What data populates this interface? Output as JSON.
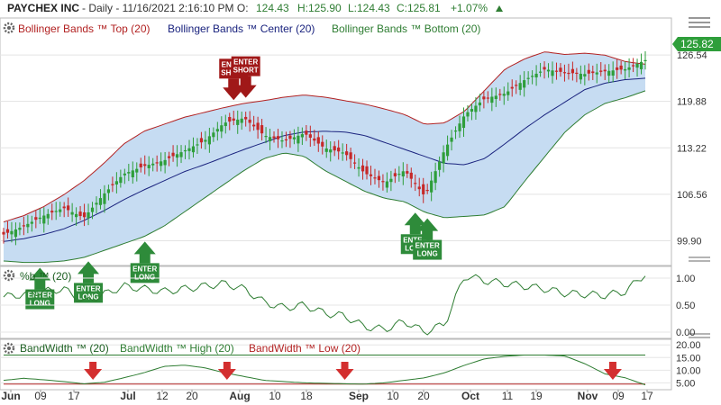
{
  "header": {
    "symbol": "PAYCHEX INC",
    "info": "- Daily - 11/16/2021 2:16:10 PM O:",
    "open": "124.43",
    "high": "H:125.90",
    "low": "L:124.43",
    "close": "C:125.81",
    "change": "+1.07%",
    "change_arrow": "up-triangle-icon"
  },
  "last_price": "125.82",
  "legends": {
    "price": [
      {
        "label": "Bollinger Bands ™ Top (20)",
        "color": "#b22222"
      },
      {
        "label": "Bollinger Bands ™ Center (20)",
        "color": "#1a237e"
      },
      {
        "label": "Bollinger Bands ™ Bottom (20)",
        "color": "#2e7d32"
      }
    ],
    "pctb": [
      {
        "label": "%b ™ (20)",
        "color": "#1b5e20"
      }
    ],
    "bw": [
      {
        "label": "BandWidth ™ (20)",
        "color": "#1b5e20"
      },
      {
        "label": "BandWidth ™ High (20)",
        "color": "#2e7d32"
      },
      {
        "label": "BandWidth ™ Low (20)",
        "color": "#b22222"
      }
    ]
  },
  "colors": {
    "up": "#2e9e3a",
    "down": "#c62828",
    "band_fill": "#c6dcf2",
    "top": "#b22222",
    "center": "#1a237e",
    "bottom": "#2e7d32",
    "buy": "#2e8b3a",
    "sell": "#a01818"
  },
  "chart_data": [
    {
      "type": "candlestick",
      "title": "PAYCHEX INC",
      "x_axis": [
        "Jun",
        "09",
        "17",
        "Jul",
        "12",
        "20",
        "Aug",
        "10",
        "18",
        "Sep",
        "10",
        "20",
        "Oct",
        "11",
        "19",
        "Nov",
        "09",
        "17"
      ],
      "y_ticks": [
        "99.90",
        "106.56",
        "113.22",
        "119.88",
        "126.54"
      ],
      "ylim": [
        97.0,
        129.0
      ],
      "series": [
        {
          "name": "Bollinger Bands ™ Top (20)",
          "values": [
            102.6,
            103.5,
            104.8,
            106.5,
            108.5,
            111.0,
            113.8,
            115.6,
            116.6,
            117.6,
            118.3,
            119.0,
            119.6,
            120.0,
            120.5,
            120.8,
            120.5,
            120.0,
            119.5,
            118.8,
            118.0,
            116.6,
            116.8,
            118.5,
            121.5,
            124.5,
            126.0,
            127.0,
            126.6,
            126.8,
            126.5,
            125.6,
            125.2
          ]
        },
        {
          "name": "Bollinger Bands ™ Center (20)",
          "values": [
            99.8,
            100.2,
            100.8,
            101.6,
            102.8,
            104.2,
            105.8,
            107.2,
            108.5,
            109.8,
            110.8,
            111.9,
            113.0,
            114.0,
            115.0,
            115.5,
            115.6,
            115.5,
            115.0,
            114.0,
            113.0,
            112.0,
            111.0,
            110.8,
            111.7,
            113.8,
            116.0,
            118.0,
            119.8,
            121.6,
            122.5,
            123.0,
            123.2
          ]
        },
        {
          "name": "Bollinger Bands ™ Bottom (20)",
          "values": [
            97.0,
            96.8,
            96.8,
            97.0,
            97.5,
            98.5,
            99.5,
            100.5,
            102.0,
            104.0,
            106.0,
            108.0,
            110.0,
            111.7,
            112.5,
            112.0,
            110.0,
            108.5,
            107.0,
            106.0,
            105.5,
            104.0,
            103.2,
            103.4,
            103.6,
            104.8,
            108.5,
            112.0,
            115.5,
            118.0,
            119.6,
            120.4,
            121.4
          ]
        },
        {
          "name": "Close",
          "values": [
            100.8,
            102.0,
            103.5,
            104.6,
            103.2,
            106.6,
            109.5,
            110.6,
            111.4,
            112.8,
            114.2,
            116.8,
            117.5,
            115.0,
            114.2,
            115.3,
            113.2,
            112.5,
            109.6,
            108.2,
            110.0,
            106.3,
            113.0,
            118.0,
            120.3,
            121.0,
            123.0,
            124.5,
            124.0,
            123.8,
            124.2,
            124.5,
            125.8
          ]
        }
      ],
      "signals": [
        {
          "x": 9,
          "label": "ENTER\nLONG",
          "type": "long"
        },
        {
          "x": 21,
          "label": "ENTER\nLONG",
          "type": "long"
        },
        {
          "x": 35,
          "label": "ENTER\nLONG",
          "type": "long"
        },
        {
          "x": 57,
          "label": "ENTER\nSHORT",
          "type": "short"
        },
        {
          "x": 60,
          "label": "ENTER\nSHORT",
          "type": "short"
        },
        {
          "x": 102,
          "label": "ENTER\nLONG",
          "type": "long"
        },
        {
          "x": 105,
          "label": "ENTER\nLONG",
          "type": "long"
        }
      ]
    },
    {
      "type": "line",
      "title": "%b ™ (20)",
      "y_ticks": [
        "0.00",
        "0.50",
        "1.00"
      ],
      "ylim": [
        -0.05,
        1.15
      ],
      "series": [
        {
          "name": "%b ™ (20)",
          "values": [
            0.65,
            0.7,
            0.75,
            0.8,
            0.55,
            0.7,
            0.85,
            0.8,
            0.75,
            0.8,
            0.85,
            0.9,
            0.8,
            0.55,
            0.45,
            0.5,
            0.35,
            0.3,
            0.1,
            0.05,
            0.2,
            0.0,
            0.15,
            1.05,
            0.95,
            0.9,
            0.85,
            0.8,
            0.72,
            0.7,
            0.68,
            0.75,
            1.08
          ]
        }
      ]
    },
    {
      "type": "line",
      "title": "BandWidth ™ (20)",
      "y_ticks": [
        "5.00",
        "10.00",
        "15.00",
        "20.00"
      ],
      "ylim": [
        3.0,
        21.5
      ],
      "series": [
        {
          "name": "BandWidth ™ (20)",
          "values": [
            6.0,
            6.8,
            6.2,
            5.5,
            4.6,
            5.2,
            7.0,
            9.0,
            11.5,
            12.0,
            11.0,
            9.0,
            7.5,
            6.0,
            5.5,
            5.0,
            4.8,
            4.6,
            4.5,
            5.0,
            6.0,
            7.0,
            9.0,
            12.0,
            14.5,
            15.5,
            16.0,
            16.0,
            15.6,
            12.5,
            8.5,
            7.0,
            4.2
          ]
        },
        {
          "name": "BandWidth ™ High (20)",
          "values": [
            16.0
          ]
        },
        {
          "name": "BandWidth ™ Low (20)",
          "values": [
            4.5
          ]
        }
      ],
      "signals": [
        {
          "x": 22,
          "type": "low-marker"
        },
        {
          "x": 55,
          "type": "low-marker"
        },
        {
          "x": 84,
          "type": "low-marker"
        },
        {
          "x": 150,
          "type": "low-marker"
        }
      ]
    }
  ]
}
